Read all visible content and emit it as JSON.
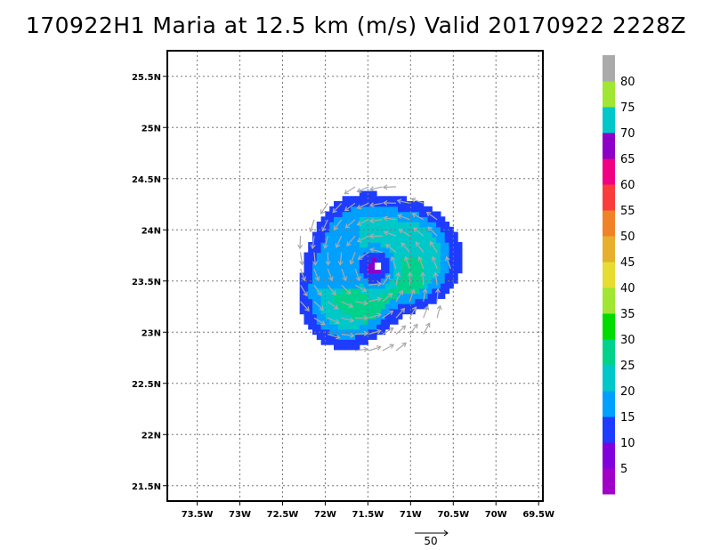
{
  "title": "170922H1 Maria at 12.5 km (m/s) Valid 20170922 2228Z",
  "chart_data": {
    "type": "heatmap",
    "title": "170922H1 Maria at 12.5 km (m/s) Valid 20170922 2228Z",
    "xlabel": "",
    "ylabel": "",
    "xlim": [
      -73.85,
      -69.45
    ],
    "ylim": [
      21.35,
      25.75
    ],
    "x_ticks": [
      -73.5,
      -73,
      -72.5,
      -72,
      -71.5,
      -71,
      -70.5,
      -70,
      -69.5
    ],
    "x_tick_labels": [
      "73.5W",
      "73W",
      "72.5W",
      "72W",
      "71.5W",
      "71W",
      "70.5W",
      "70W",
      "69.5W"
    ],
    "y_ticks": [
      21.5,
      22,
      22.5,
      23,
      23.5,
      24,
      24.5,
      25,
      25.5
    ],
    "y_tick_labels": [
      "21.5N",
      "22N",
      "22.5N",
      "23N",
      "23.5N",
      "24N",
      "24.5N",
      "25N",
      "25.5N"
    ],
    "grid": true,
    "colorbar": {
      "levels": [
        5,
        10,
        15,
        20,
        25,
        30,
        35,
        40,
        45,
        50,
        55,
        60,
        65,
        70,
        75,
        80
      ],
      "labels": [
        "5",
        "10",
        "15",
        "20",
        "25",
        "30",
        "35",
        "40",
        "45",
        "50",
        "55",
        "60",
        "65",
        "70",
        "75",
        "80"
      ],
      "colors": [
        "#a000c8",
        "#8200dc",
        "#1e3cff",
        "#00a0ff",
        "#00c8c8",
        "#00d28c",
        "#00dc00",
        "#a0e632",
        "#e6dc32",
        "#e6af2d",
        "#f08228",
        "#fa3c3c",
        "#f00082",
        "#8c00c8",
        "#00c8c8",
        "#a0e632",
        "#aaaaaa"
      ]
    },
    "storm_center": [
      -71.45,
      23.62
    ],
    "reference_vector": {
      "magnitude": 50,
      "label": "50"
    },
    "vector_color": "#aaaaaa"
  }
}
